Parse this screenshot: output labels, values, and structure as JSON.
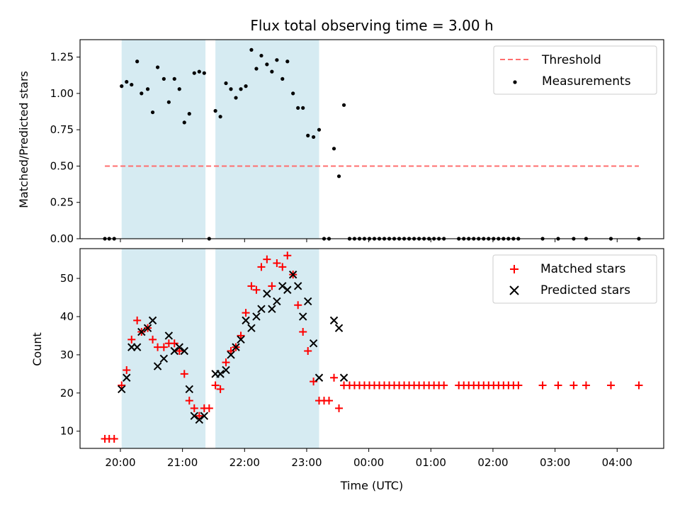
{
  "title": "Flux total observing time = 3.00 h",
  "colors": {
    "shade": "#add8e6",
    "threshold": "#ff6e6e",
    "measurement": "#000000",
    "matched": "#ff0000",
    "predicted": "#000000"
  },
  "chart_data": [
    {
      "type": "scatter",
      "ylabel": "Matched/Predicted stars",
      "xlabel": "",
      "x_unit": "hours after 20:00 UTC",
      "xlim": [
        -0.65,
        8.75
      ],
      "ylim": [
        0,
        1.37
      ],
      "yticks": [
        "0.00",
        "0.25",
        "0.50",
        "0.75",
        "1.00",
        "1.25"
      ],
      "ytick_values": [
        0,
        0.25,
        0.5,
        0.75,
        1.0,
        1.25
      ],
      "shaded_spans": [
        [
          0.02,
          1.37
        ],
        [
          1.53,
          3.2
        ]
      ],
      "legend": [
        "Threshold",
        "Measurements"
      ],
      "legend_position": "top-right",
      "threshold": {
        "name": "Threshold",
        "y": 0.5,
        "x_range": [
          -0.25,
          8.35
        ]
      },
      "series": [
        {
          "name": "Measurements",
          "points": [
            [
              -0.25,
              0
            ],
            [
              -0.18,
              0
            ],
            [
              -0.1,
              0
            ],
            [
              0.02,
              1.05
            ],
            [
              0.1,
              1.08
            ],
            [
              0.18,
              1.06
            ],
            [
              0.27,
              1.22
            ],
            [
              0.34,
              1.0
            ],
            [
              0.44,
              1.03
            ],
            [
              0.52,
              0.87
            ],
            [
              0.6,
              1.18
            ],
            [
              0.7,
              1.1
            ],
            [
              0.78,
              0.94
            ],
            [
              0.87,
              1.1
            ],
            [
              0.95,
              1.03
            ],
            [
              1.03,
              0.8
            ],
            [
              1.11,
              0.86
            ],
            [
              1.19,
              1.14
            ],
            [
              1.27,
              1.15
            ],
            [
              1.35,
              1.14
            ],
            [
              1.43,
              0
            ],
            [
              1.53,
              0.88
            ],
            [
              1.61,
              0.84
            ],
            [
              1.7,
              1.07
            ],
            [
              1.78,
              1.03
            ],
            [
              1.86,
              0.97
            ],
            [
              1.94,
              1.03
            ],
            [
              2.02,
              1.05
            ],
            [
              2.11,
              1.3
            ],
            [
              2.19,
              1.17
            ],
            [
              2.27,
              1.26
            ],
            [
              2.36,
              1.2
            ],
            [
              2.44,
              1.15
            ],
            [
              2.52,
              1.23
            ],
            [
              2.61,
              1.1
            ],
            [
              2.69,
              1.22
            ],
            [
              2.78,
              1.0
            ],
            [
              2.86,
              0.9
            ],
            [
              2.94,
              0.9
            ],
            [
              3.02,
              0.71
            ],
            [
              3.11,
              0.7
            ],
            [
              3.2,
              0.75
            ],
            [
              3.28,
              0
            ],
            [
              3.36,
              0
            ],
            [
              3.44,
              0.62
            ],
            [
              3.52,
              0.43
            ],
            [
              3.6,
              0.92
            ],
            [
              3.69,
              0
            ],
            [
              3.77,
              0
            ],
            [
              3.85,
              0
            ],
            [
              3.93,
              0
            ],
            [
              4.01,
              0
            ],
            [
              4.09,
              0
            ],
            [
              4.17,
              0
            ],
            [
              4.25,
              0
            ],
            [
              4.33,
              0
            ],
            [
              4.41,
              0
            ],
            [
              4.49,
              0
            ],
            [
              4.57,
              0
            ],
            [
              4.65,
              0
            ],
            [
              4.73,
              0
            ],
            [
              4.81,
              0
            ],
            [
              4.89,
              0
            ],
            [
              4.97,
              0
            ],
            [
              5.05,
              0
            ],
            [
              5.13,
              0
            ],
            [
              5.21,
              0
            ],
            [
              5.45,
              0
            ],
            [
              5.53,
              0
            ],
            [
              5.61,
              0
            ],
            [
              5.69,
              0
            ],
            [
              5.77,
              0
            ],
            [
              5.85,
              0
            ],
            [
              5.93,
              0
            ],
            [
              6.01,
              0
            ],
            [
              6.09,
              0
            ],
            [
              6.17,
              0
            ],
            [
              6.25,
              0
            ],
            [
              6.33,
              0
            ],
            [
              6.41,
              0
            ],
            [
              6.8,
              0
            ],
            [
              7.05,
              0
            ],
            [
              7.3,
              0
            ],
            [
              7.5,
              0
            ],
            [
              7.9,
              0
            ],
            [
              8.35,
              0
            ]
          ]
        }
      ]
    },
    {
      "type": "scatter",
      "ylabel": "Count",
      "xlabel": "Time (UTC)",
      "x_unit": "hours after 20:00 UTC",
      "xlim": [
        -0.65,
        8.75
      ],
      "ylim": [
        5.5,
        57.8
      ],
      "yticks": [
        "10",
        "20",
        "30",
        "40",
        "50"
      ],
      "ytick_values": [
        10,
        20,
        30,
        40,
        50
      ],
      "xticks": [
        "20:00",
        "21:00",
        "22:00",
        "23:00",
        "00:00",
        "01:00",
        "02:00",
        "03:00",
        "04:00"
      ],
      "xtick_values": [
        0,
        1,
        2,
        3,
        4,
        5,
        6,
        7,
        8
      ],
      "shaded_spans": [
        [
          0.02,
          1.37
        ],
        [
          1.53,
          3.2
        ]
      ],
      "legend": [
        "Matched stars",
        "Predicted stars"
      ],
      "legend_position": "top-right",
      "series": [
        {
          "name": "Matched stars",
          "marker": "plus",
          "points": [
            [
              -0.25,
              8
            ],
            [
              -0.18,
              8
            ],
            [
              -0.1,
              8
            ],
            [
              0.02,
              22
            ],
            [
              0.1,
              26
            ],
            [
              0.18,
              34
            ],
            [
              0.27,
              39
            ],
            [
              0.34,
              36
            ],
            [
              0.44,
              37
            ],
            [
              0.52,
              34
            ],
            [
              0.6,
              32
            ],
            [
              0.7,
              32
            ],
            [
              0.78,
              33
            ],
            [
              0.87,
              33
            ],
            [
              0.95,
              31
            ],
            [
              1.03,
              25
            ],
            [
              1.11,
              18
            ],
            [
              1.19,
              16
            ],
            [
              1.27,
              14
            ],
            [
              1.35,
              16
            ],
            [
              1.43,
              16
            ],
            [
              1.53,
              22
            ],
            [
              1.61,
              21
            ],
            [
              1.7,
              28
            ],
            [
              1.78,
              31
            ],
            [
              1.86,
              32
            ],
            [
              1.94,
              35
            ],
            [
              2.02,
              41
            ],
            [
              2.11,
              48
            ],
            [
              2.19,
              47
            ],
            [
              2.27,
              53
            ],
            [
              2.36,
              55
            ],
            [
              2.44,
              48
            ],
            [
              2.52,
              54
            ],
            [
              2.61,
              53
            ],
            [
              2.69,
              56
            ],
            [
              2.78,
              51
            ],
            [
              2.86,
              43
            ],
            [
              2.94,
              36
            ],
            [
              3.02,
              31
            ],
            [
              3.11,
              23
            ],
            [
              3.2,
              18
            ],
            [
              3.28,
              18
            ],
            [
              3.36,
              18
            ],
            [
              3.44,
              24
            ],
            [
              3.52,
              16
            ],
            [
              3.6,
              22
            ],
            [
              3.69,
              22
            ],
            [
              3.77,
              22
            ],
            [
              3.85,
              22
            ],
            [
              3.93,
              22
            ],
            [
              4.01,
              22
            ],
            [
              4.09,
              22
            ],
            [
              4.17,
              22
            ],
            [
              4.25,
              22
            ],
            [
              4.33,
              22
            ],
            [
              4.41,
              22
            ],
            [
              4.49,
              22
            ],
            [
              4.57,
              22
            ],
            [
              4.65,
              22
            ],
            [
              4.73,
              22
            ],
            [
              4.81,
              22
            ],
            [
              4.89,
              22
            ],
            [
              4.97,
              22
            ],
            [
              5.05,
              22
            ],
            [
              5.13,
              22
            ],
            [
              5.21,
              22
            ],
            [
              5.45,
              22
            ],
            [
              5.53,
              22
            ],
            [
              5.61,
              22
            ],
            [
              5.69,
              22
            ],
            [
              5.77,
              22
            ],
            [
              5.85,
              22
            ],
            [
              5.93,
              22
            ],
            [
              6.01,
              22
            ],
            [
              6.09,
              22
            ],
            [
              6.17,
              22
            ],
            [
              6.25,
              22
            ],
            [
              6.33,
              22
            ],
            [
              6.41,
              22
            ],
            [
              6.8,
              22
            ],
            [
              7.05,
              22
            ],
            [
              7.3,
              22
            ],
            [
              7.5,
              22
            ],
            [
              7.9,
              22
            ],
            [
              8.35,
              22
            ]
          ]
        },
        {
          "name": "Predicted stars",
          "marker": "x",
          "points": [
            [
              0.02,
              21
            ],
            [
              0.1,
              24
            ],
            [
              0.18,
              32
            ],
            [
              0.27,
              32
            ],
            [
              0.34,
              36
            ],
            [
              0.44,
              37
            ],
            [
              0.52,
              39
            ],
            [
              0.6,
              27
            ],
            [
              0.7,
              29
            ],
            [
              0.78,
              35
            ],
            [
              0.87,
              31
            ],
            [
              0.95,
              32
            ],
            [
              1.03,
              31
            ],
            [
              1.11,
              21
            ],
            [
              1.19,
              14
            ],
            [
              1.27,
              13
            ],
            [
              1.35,
              14
            ],
            [
              1.53,
              25
            ],
            [
              1.61,
              25
            ],
            [
              1.7,
              26
            ],
            [
              1.78,
              30
            ],
            [
              1.86,
              32
            ],
            [
              1.94,
              34
            ],
            [
              2.02,
              39
            ],
            [
              2.11,
              37
            ],
            [
              2.19,
              40
            ],
            [
              2.27,
              42
            ],
            [
              2.36,
              46
            ],
            [
              2.44,
              42
            ],
            [
              2.52,
              44
            ],
            [
              2.61,
              48
            ],
            [
              2.69,
              47
            ],
            [
              2.78,
              51
            ],
            [
              2.86,
              48
            ],
            [
              2.94,
              40
            ],
            [
              3.02,
              44
            ],
            [
              3.11,
              33
            ],
            [
              3.2,
              24
            ],
            [
              3.44,
              39
            ],
            [
              3.52,
              37
            ],
            [
              3.6,
              24
            ]
          ]
        }
      ]
    }
  ]
}
